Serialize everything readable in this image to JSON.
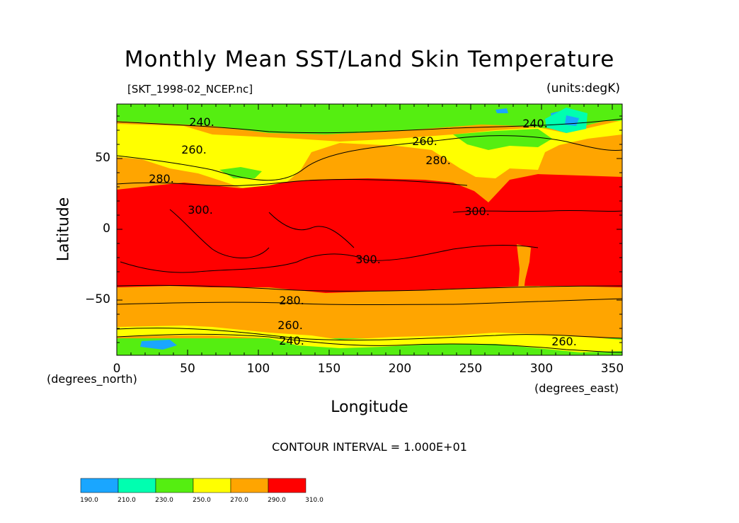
{
  "chart_data": {
    "type": "heatmap",
    "title": "Monthly Mean SST/Land Skin Temperature",
    "file_label": "[SKT_1998-02_NCEP.nc]",
    "units_label": "(units:degK)",
    "xlabel": "Longitude",
    "ylabel": "Latitude",
    "x_unit_note": "(degrees_east)",
    "y_unit_note": "(degrees_north)",
    "xlim": [
      0,
      357.5
    ],
    "ylim": [
      -90,
      90
    ],
    "x_ticks": [
      "0",
      "50",
      "100",
      "150",
      "200",
      "250",
      "300",
      "350"
    ],
    "y_ticks": [
      "50",
      "0",
      "−50"
    ],
    "contour_interval_text": "CONTOUR INTERVAL = 1.000E+01",
    "contour_labels": [
      "240.",
      "260.",
      "280.",
      "300.",
      "300.",
      "300.",
      "280.",
      "260.",
      "240.",
      "260.",
      "260.",
      "280.",
      "240."
    ],
    "colorbar": {
      "ticks": [
        "190.0",
        "210.0",
        "230.0",
        "250.0",
        "270.0",
        "290.0",
        "310.0"
      ],
      "colors": [
        "#1aa6ff",
        "#00ffb0",
        "#55ee11",
        "#ffff00",
        "#ffa500",
        "#ff0000"
      ]
    },
    "colors": {
      "band_190_210": "#1aa6ff",
      "band_210_230": "#00ffb0",
      "band_230_250": "#55ee11",
      "band_250_270": "#ffff00",
      "band_270_290": "#ffa500",
      "band_290_310": "#ff0000"
    }
  }
}
